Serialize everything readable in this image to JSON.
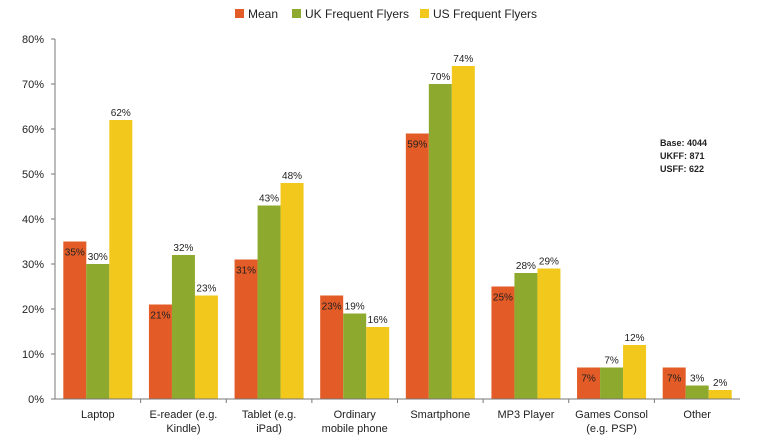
{
  "chart_data": {
    "type": "bar",
    "categories": [
      [
        "Laptop"
      ],
      [
        "E-reader (e.g.",
        "Kindle)"
      ],
      [
        "Tablet (e.g.",
        "iPad)"
      ],
      [
        "Ordinary",
        "mobile phone"
      ],
      [
        "Smartphone"
      ],
      [
        "MP3 Player"
      ],
      [
        "Games Consol",
        "(e.g. PSP)"
      ],
      [
        "Other"
      ]
    ],
    "series": [
      {
        "name": "Mean",
        "color": "#E35B26",
        "values": [
          35,
          21,
          31,
          23,
          59,
          25,
          7,
          7
        ]
      },
      {
        "name": "UK Frequent Flyers",
        "color": "#8DAA2E",
        "values": [
          30,
          32,
          43,
          19,
          70,
          28,
          7,
          3
        ]
      },
      {
        "name": "US Frequent Flyers",
        "color": "#F2C81C",
        "values": [
          62,
          23,
          48,
          16,
          74,
          29,
          12,
          2
        ]
      }
    ],
    "ylim": [
      0,
      80
    ],
    "yticks": [
      "0%",
      "10%",
      "20%",
      "30%",
      "40%",
      "50%",
      "60%",
      "70%",
      "80%"
    ],
    "value_suffix": "%",
    "grid": false,
    "legend": "top",
    "annotation": [
      "Base: 4044",
      "UKFF: 871",
      "USFF: 622"
    ]
  }
}
